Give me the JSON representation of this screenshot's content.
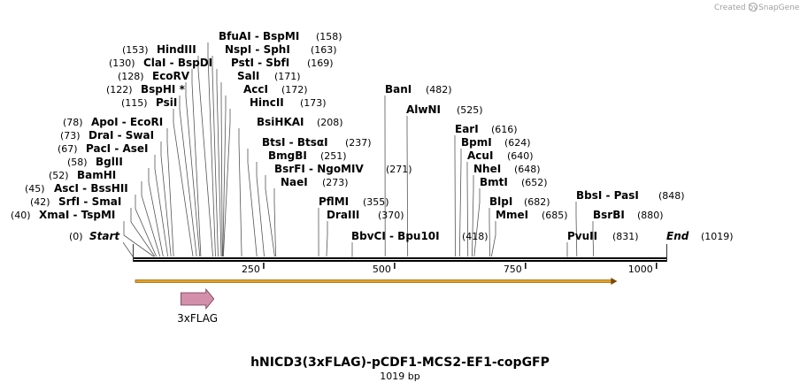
{
  "credit": {
    "prefix": "Created by",
    "brand": "SnapGene"
  },
  "map": {
    "length": 1019,
    "start_label": "Start",
    "start_pos": "(0)",
    "end_label": "End",
    "end_pos": "(1019)",
    "ticks": [
      250,
      500,
      750,
      1000
    ],
    "title": "hNICD3(3xFLAG)-pCDF1-MCS2-EF1-copGFP",
    "subtitle": "1019 bp",
    "colors": {
      "backbone": "#000000",
      "orf_fill": "#e6a11f",
      "orf_edge": "#7a4a00",
      "feature_fill": "#d48fab",
      "feature_edge": "#6b3a4e",
      "leader": "#555555"
    }
  },
  "features": [
    {
      "label": "3xFLAG",
      "start": 92,
      "end": 155,
      "icon": "arrow-right-icon"
    }
  ],
  "orf": {
    "start": 5,
    "end": 925,
    "icon": "orf-arrow-icon"
  },
  "sites": [
    {
      "text": "XmaI - TspMI",
      "pos": 40,
      "pos_text": "(40)"
    },
    {
      "text": "SrfI - SmaI",
      "pos": 42,
      "pos_text": "(42)"
    },
    {
      "text": "AscI - BssHII",
      "pos": 45,
      "pos_text": "(45)"
    },
    {
      "text": "BamHI",
      "pos": 52,
      "pos_text": "(52)"
    },
    {
      "text": "BglII",
      "pos": 58,
      "pos_text": "(58)"
    },
    {
      "text": "PacI - AseI",
      "pos": 67,
      "pos_text": "(67)"
    },
    {
      "text": "DraI - SwaI",
      "pos": 73,
      "pos_text": "(73)"
    },
    {
      "text": "ApoI - EcoRI",
      "pos": 78,
      "pos_text": "(78)"
    },
    {
      "text": "PsiI",
      "pos": 115,
      "pos_text": "(115)"
    },
    {
      "text": "BspHI *",
      "pos": 122,
      "pos_text": "(122)"
    },
    {
      "text": "EcoRV",
      "pos": 128,
      "pos_text": "(128)"
    },
    {
      "text": "ClaI - BspDI",
      "pos": 130,
      "pos_text": "(130)"
    },
    {
      "text": "HindIII",
      "pos": 153,
      "pos_text": "(153)"
    },
    {
      "text": "BfuAI - BspMI",
      "pos": 158,
      "pos_text": "(158)"
    },
    {
      "text": "NspI - SphI",
      "pos": 163,
      "pos_text": "(163)"
    },
    {
      "text": "PstI - SbfI",
      "pos": 169,
      "pos_text": "(169)"
    },
    {
      "text": "SalI",
      "pos": 171,
      "pos_text": "(171)"
    },
    {
      "text": "AccI",
      "pos": 172,
      "pos_text": "(172)"
    },
    {
      "text": "HincII",
      "pos": 173,
      "pos_text": "(173)"
    },
    {
      "text": "BsiHKAI",
      "pos": 208,
      "pos_text": "(208)"
    },
    {
      "text": "BtsI - BtsαI",
      "pos": 237,
      "pos_text": "(237)"
    },
    {
      "text": "BmgBI",
      "pos": 251,
      "pos_text": "(251)"
    },
    {
      "text": "BsrFI - NgoMIV",
      "pos": 271,
      "pos_text": "(271)"
    },
    {
      "text": "NaeI",
      "pos": 273,
      "pos_text": "(273)"
    },
    {
      "text": "PflMI",
      "pos": 355,
      "pos_text": "(355)"
    },
    {
      "text": "DraIII",
      "pos": 370,
      "pos_text": "(370)"
    },
    {
      "text": "BbvCI - Bpu10I",
      "pos": 418,
      "pos_text": "(418)"
    },
    {
      "text": "BanI",
      "pos": 482,
      "pos_text": "(482)"
    },
    {
      "text": "AlwNI",
      "pos": 525,
      "pos_text": "(525)"
    },
    {
      "text": "EarI",
      "pos": 616,
      "pos_text": "(616)"
    },
    {
      "text": "BpmI",
      "pos": 624,
      "pos_text": "(624)"
    },
    {
      "text": "AcuI",
      "pos": 640,
      "pos_text": "(640)"
    },
    {
      "text": "NheI",
      "pos": 648,
      "pos_text": "(648)"
    },
    {
      "text": "BmtI",
      "pos": 652,
      "pos_text": "(652)"
    },
    {
      "text": "BlpI",
      "pos": 682,
      "pos_text": "(682)"
    },
    {
      "text": "MmeI",
      "pos": 685,
      "pos_text": "(685)"
    },
    {
      "text": "PvuII",
      "pos": 831,
      "pos_text": "(831)"
    },
    {
      "text": "BbsI - PasI",
      "pos": 848,
      "pos_text": "(848)"
    },
    {
      "text": "BsrBI",
      "pos": 880,
      "pos_text": "(880)"
    }
  ]
}
